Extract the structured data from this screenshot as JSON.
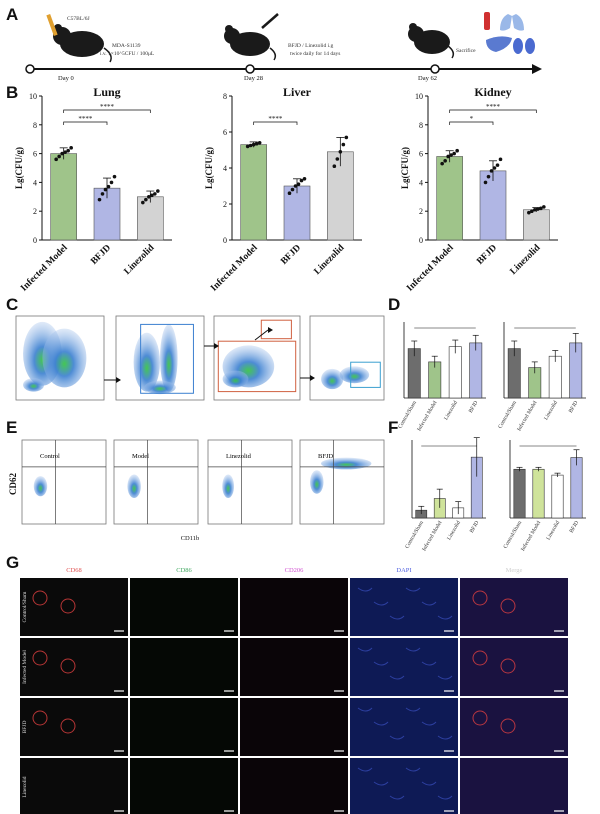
{
  "panels": {
    "A": "A",
    "B": "B",
    "C": "C",
    "D": "D",
    "E": "E",
    "F": "F",
    "G": "G"
  },
  "timeline": {
    "days": [
      "Day 0",
      "Day 28",
      "Day 62"
    ],
    "mouse1_label": "C57BL/6J",
    "step1": [
      "MDA-S1139",
      "i.v. 1×10^5CFU / 100μL"
    ],
    "step2": [
      "BFJD / Linezolid i.g",
      "twice daily for 14 days"
    ],
    "step3": "Sacrifice"
  },
  "colors": {
    "green": "#9fc48a",
    "blue": "#b0b6e4",
    "grey": "#d3d3d3",
    "dark": "#6d6d6d",
    "lime": "#cfe39b",
    "white": "#ffffff"
  },
  "chart_data": [
    {
      "type": "bar",
      "title": "Lung",
      "ylabel": "Lg(CFU/g)",
      "ylim": [
        0,
        10
      ],
      "yticks": [
        0,
        2,
        4,
        6,
        8,
        10
      ],
      "categories": [
        "Infected Model",
        "BFJD",
        "Linezolid"
      ],
      "values": [
        6.0,
        3.6,
        3.0
      ],
      "errors": [
        0.4,
        0.7,
        0.4
      ],
      "points": [
        [
          5.6,
          5.8,
          6.0,
          6.1,
          6.2,
          6.4
        ],
        [
          2.8,
          3.2,
          3.5,
          3.7,
          4.0,
          4.4
        ],
        [
          2.6,
          2.8,
          3.0,
          3.1,
          3.2,
          3.4
        ]
      ],
      "significance": [
        {
          "pair": [
            0,
            1
          ],
          "label": "****"
        },
        {
          "pair": [
            0,
            2
          ],
          "label": "****"
        }
      ]
    },
    {
      "type": "bar",
      "title": "Liver",
      "ylabel": "Lg(CFU/g)",
      "ylim": [
        0,
        8
      ],
      "yticks": [
        0,
        2,
        4,
        6,
        8
      ],
      "categories": [
        "Infected Model",
        "BFJD",
        "Linezolid"
      ],
      "values": [
        5.3,
        3.0,
        4.9
      ],
      "errors": [
        0.15,
        0.4,
        0.8
      ],
      "points": [
        [
          5.2,
          5.25,
          5.3,
          5.35,
          5.4
        ],
        [
          2.6,
          2.8,
          3.0,
          3.1,
          3.3,
          3.4
        ],
        [
          4.1,
          4.5,
          4.9,
          5.3,
          5.7
        ]
      ],
      "significance": [
        {
          "pair": [
            0,
            1
          ],
          "label": "****"
        }
      ]
    },
    {
      "type": "bar",
      "title": "Kidney",
      "ylabel": "Lg(CFU/g)",
      "ylim": [
        0,
        10
      ],
      "yticks": [
        0,
        2,
        4,
        6,
        8,
        10
      ],
      "categories": [
        "Infected Model",
        "BFJD",
        "Linezolid"
      ],
      "values": [
        5.8,
        4.8,
        2.1
      ],
      "errors": [
        0.4,
        0.7,
        0.15
      ],
      "points": [
        [
          5.3,
          5.5,
          5.8,
          5.9,
          6.0,
          6.2
        ],
        [
          4.0,
          4.4,
          4.8,
          5.0,
          5.2,
          5.6
        ],
        [
          1.9,
          2.0,
          2.1,
          2.15,
          2.2,
          2.3
        ]
      ],
      "significance": [
        {
          "pair": [
            0,
            1
          ],
          "label": "*"
        },
        {
          "pair": [
            0,
            2
          ],
          "label": "****"
        }
      ]
    }
  ],
  "d_charts": [
    {
      "ylim": [
        0,
        80
      ],
      "values": [
        52,
        38,
        54,
        58
      ],
      "errors": [
        8,
        6,
        7,
        8
      ],
      "colors": [
        "#6d6d6d",
        "#9fc48a",
        "#ffffff",
        "#b0b6e4"
      ],
      "categories": [
        "Control/Sham",
        "Infected Model",
        "Linezolid",
        "BFJD"
      ]
    },
    {
      "ylim": [
        0,
        4
      ],
      "values": [
        2.6,
        1.6,
        2.2,
        2.9
      ],
      "errors": [
        0.4,
        0.3,
        0.3,
        0.5
      ],
      "colors": [
        "#6d6d6d",
        "#9fc48a",
        "#ffffff",
        "#b0b6e4"
      ],
      "categories": [
        "Control/Sham",
        "Infected Model",
        "Linezolid",
        "BFJD"
      ]
    }
  ],
  "f_charts": [
    {
      "ylim": [
        0,
        10
      ],
      "values": [
        1.0,
        2.5,
        1.3,
        7.8
      ],
      "errors": [
        0.5,
        1.2,
        0.8,
        2.5
      ],
      "colors": [
        "#6d6d6d",
        "#cfe39b",
        "#ffffff",
        "#b0b6e4"
      ],
      "categories": [
        "Control/Sham",
        "Infected Model",
        "Linezolid",
        "BFJD"
      ]
    },
    {
      "ylim": [
        0,
        4
      ],
      "values": [
        2.5,
        2.5,
        2.2,
        3.1
      ],
      "errors": [
        0.1,
        0.1,
        0.1,
        0.4
      ],
      "colors": [
        "#6d6d6d",
        "#cfe39b",
        "#ffffff",
        "#b0b6e4"
      ],
      "categories": [
        "Control/Sham",
        "Infected Model",
        "Linezolid",
        "BFJD"
      ]
    }
  ],
  "e_plots": {
    "titles": [
      "Control",
      "Model",
      "Linezolid",
      "BFJD"
    ],
    "xlabel": "CD11b",
    "ylabel": "CD62"
  },
  "g": {
    "columns": [
      "CD68",
      "CD86",
      "CD206",
      "DAPI",
      "Merge"
    ],
    "column_colors": [
      "#e05050",
      "#40a860",
      "#d050d0",
      "#5060e0",
      "#d0d0d0"
    ],
    "rows": [
      "Control/Sham",
      "Infected Model",
      "BFJD",
      "Linezolid"
    ]
  }
}
